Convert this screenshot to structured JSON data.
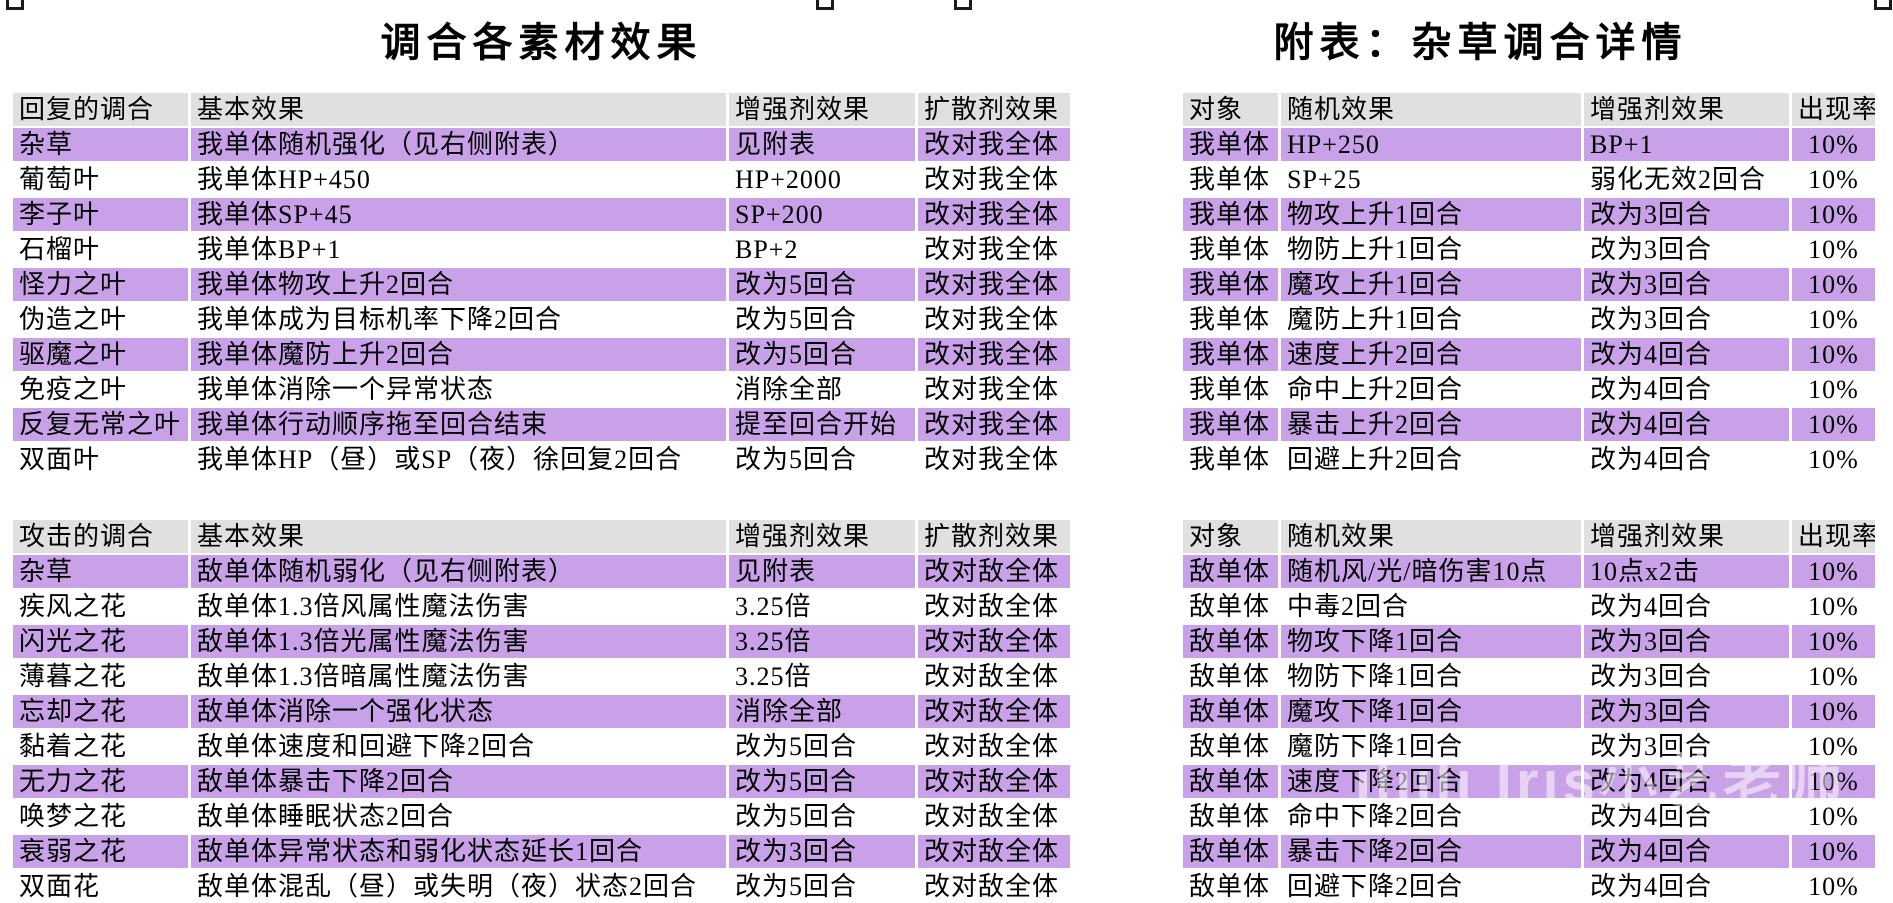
{
  "left_title": "调合各素材效果",
  "right_title": "附表：杂草调合详情",
  "colors": {
    "stripe_bg": "#c9a1e8",
    "header_bg": "#e0e0e0",
    "text": "#000000",
    "background": "#ffffff"
  },
  "watermark_text": "ılıılı Iris小艺老师",
  "tables": [
    {
      "name": "recovery-mixtures",
      "headers": [
        "回复的调合",
        "基本效果",
        "增强剂效果",
        "扩散剂效果"
      ],
      "rows": [
        [
          "杂草",
          "我单体随机强化（见右侧附表）",
          "见附表",
          "改对我全体"
        ],
        [
          "葡萄叶",
          "我单体HP+450",
          "HP+2000",
          "改对我全体"
        ],
        [
          "李子叶",
          "我单体SP+45",
          "SP+200",
          "改对我全体"
        ],
        [
          "石榴叶",
          "我单体BP+1",
          "BP+2",
          "改对我全体"
        ],
        [
          "怪力之叶",
          "我单体物攻上升2回合",
          "改为5回合",
          "改对我全体"
        ],
        [
          "伪造之叶",
          "我单体成为目标机率下降2回合",
          "改为5回合",
          "改对我全体"
        ],
        [
          "驱魔之叶",
          "我单体魔防上升2回合",
          "改为5回合",
          "改对我全体"
        ],
        [
          "免疫之叶",
          "我单体消除一个异常状态",
          "消除全部",
          "改对我全体"
        ],
        [
          "反复无常之叶",
          "我单体行动顺序拖至回合结束",
          "提至回合开始",
          "改对我全体"
        ],
        [
          "双面叶",
          "我单体HP（昼）或SP（夜）徐回复2回合",
          "改为5回合",
          "改对我全体"
        ]
      ]
    },
    {
      "name": "attack-mixtures",
      "headers": [
        "攻击的调合",
        "基本效果",
        "增强剂效果",
        "扩散剂效果"
      ],
      "rows": [
        [
          "杂草",
          "敌单体随机弱化（见右侧附表）",
          "见附表",
          "改对敌全体"
        ],
        [
          "疾风之花",
          "敌单体1.3倍风属性魔法伤害",
          "3.25倍",
          "改对敌全体"
        ],
        [
          "闪光之花",
          "敌单体1.3倍光属性魔法伤害",
          "3.25倍",
          "改对敌全体"
        ],
        [
          "薄暮之花",
          "敌单体1.3倍暗属性魔法伤害",
          "3.25倍",
          "改对敌全体"
        ],
        [
          "忘却之花",
          "敌单体消除一个强化状态",
          "消除全部",
          "改对敌全体"
        ],
        [
          "黏着之花",
          "敌单体速度和回避下降2回合",
          "改为5回合",
          "改对敌全体"
        ],
        [
          "无力之花",
          "敌单体暴击下降2回合",
          "改为5回合",
          "改对敌全体"
        ],
        [
          "唤梦之花",
          "敌单体睡眠状态2回合",
          "改为5回合",
          "改对敌全体"
        ],
        [
          "衰弱之花",
          "敌单体异常状态和弱化状态延长1回合",
          "改为3回合",
          "改对敌全体"
        ],
        [
          "双面花",
          "敌单体混乱（昼）或失明（夜）状态2回合",
          "改为5回合",
          "改对敌全体"
        ]
      ]
    },
    {
      "name": "weed-detail-ally",
      "headers": [
        "对象",
        "随机效果",
        "增强剂效果",
        "出现率"
      ],
      "rows": [
        [
          "我单体",
          "HP+250",
          "BP+1",
          "10%"
        ],
        [
          "我单体",
          "SP+25",
          "弱化无效2回合",
          "10%"
        ],
        [
          "我单体",
          "物攻上升1回合",
          "改为3回合",
          "10%"
        ],
        [
          "我单体",
          "物防上升1回合",
          "改为3回合",
          "10%"
        ],
        [
          "我单体",
          "魔攻上升1回合",
          "改为3回合",
          "10%"
        ],
        [
          "我单体",
          "魔防上升1回合",
          "改为3回合",
          "10%"
        ],
        [
          "我单体",
          "速度上升2回合",
          "改为4回合",
          "10%"
        ],
        [
          "我单体",
          "命中上升2回合",
          "改为4回合",
          "10%"
        ],
        [
          "我单体",
          "暴击上升2回合",
          "改为4回合",
          "10%"
        ],
        [
          "我单体",
          "回避上升2回合",
          "改为4回合",
          "10%"
        ]
      ]
    },
    {
      "name": "weed-detail-enemy",
      "headers": [
        "对象",
        "随机效果",
        "增强剂效果",
        "出现率"
      ],
      "rows": [
        [
          "敌单体",
          "随机风/光/暗伤害10点",
          "10点x2击",
          "10%"
        ],
        [
          "敌单体",
          "中毒2回合",
          "改为4回合",
          "10%"
        ],
        [
          "敌单体",
          "物攻下降1回合",
          "改为3回合",
          "10%"
        ],
        [
          "敌单体",
          "物防下降1回合",
          "改为3回合",
          "10%"
        ],
        [
          "敌单体",
          "魔攻下降1回合",
          "改为3回合",
          "10%"
        ],
        [
          "敌单体",
          "魔防下降1回合",
          "改为3回合",
          "10%"
        ],
        [
          "敌单体",
          "速度下降2回合",
          "改为4回合",
          "10%"
        ],
        [
          "敌单体",
          "命中下降2回合",
          "改为4回合",
          "10%"
        ],
        [
          "敌单体",
          "暴击下降2回合",
          "改为4回合",
          "10%"
        ],
        [
          "敌单体",
          "回避下降2回合",
          "改为4回合",
          "10%"
        ]
      ]
    }
  ]
}
